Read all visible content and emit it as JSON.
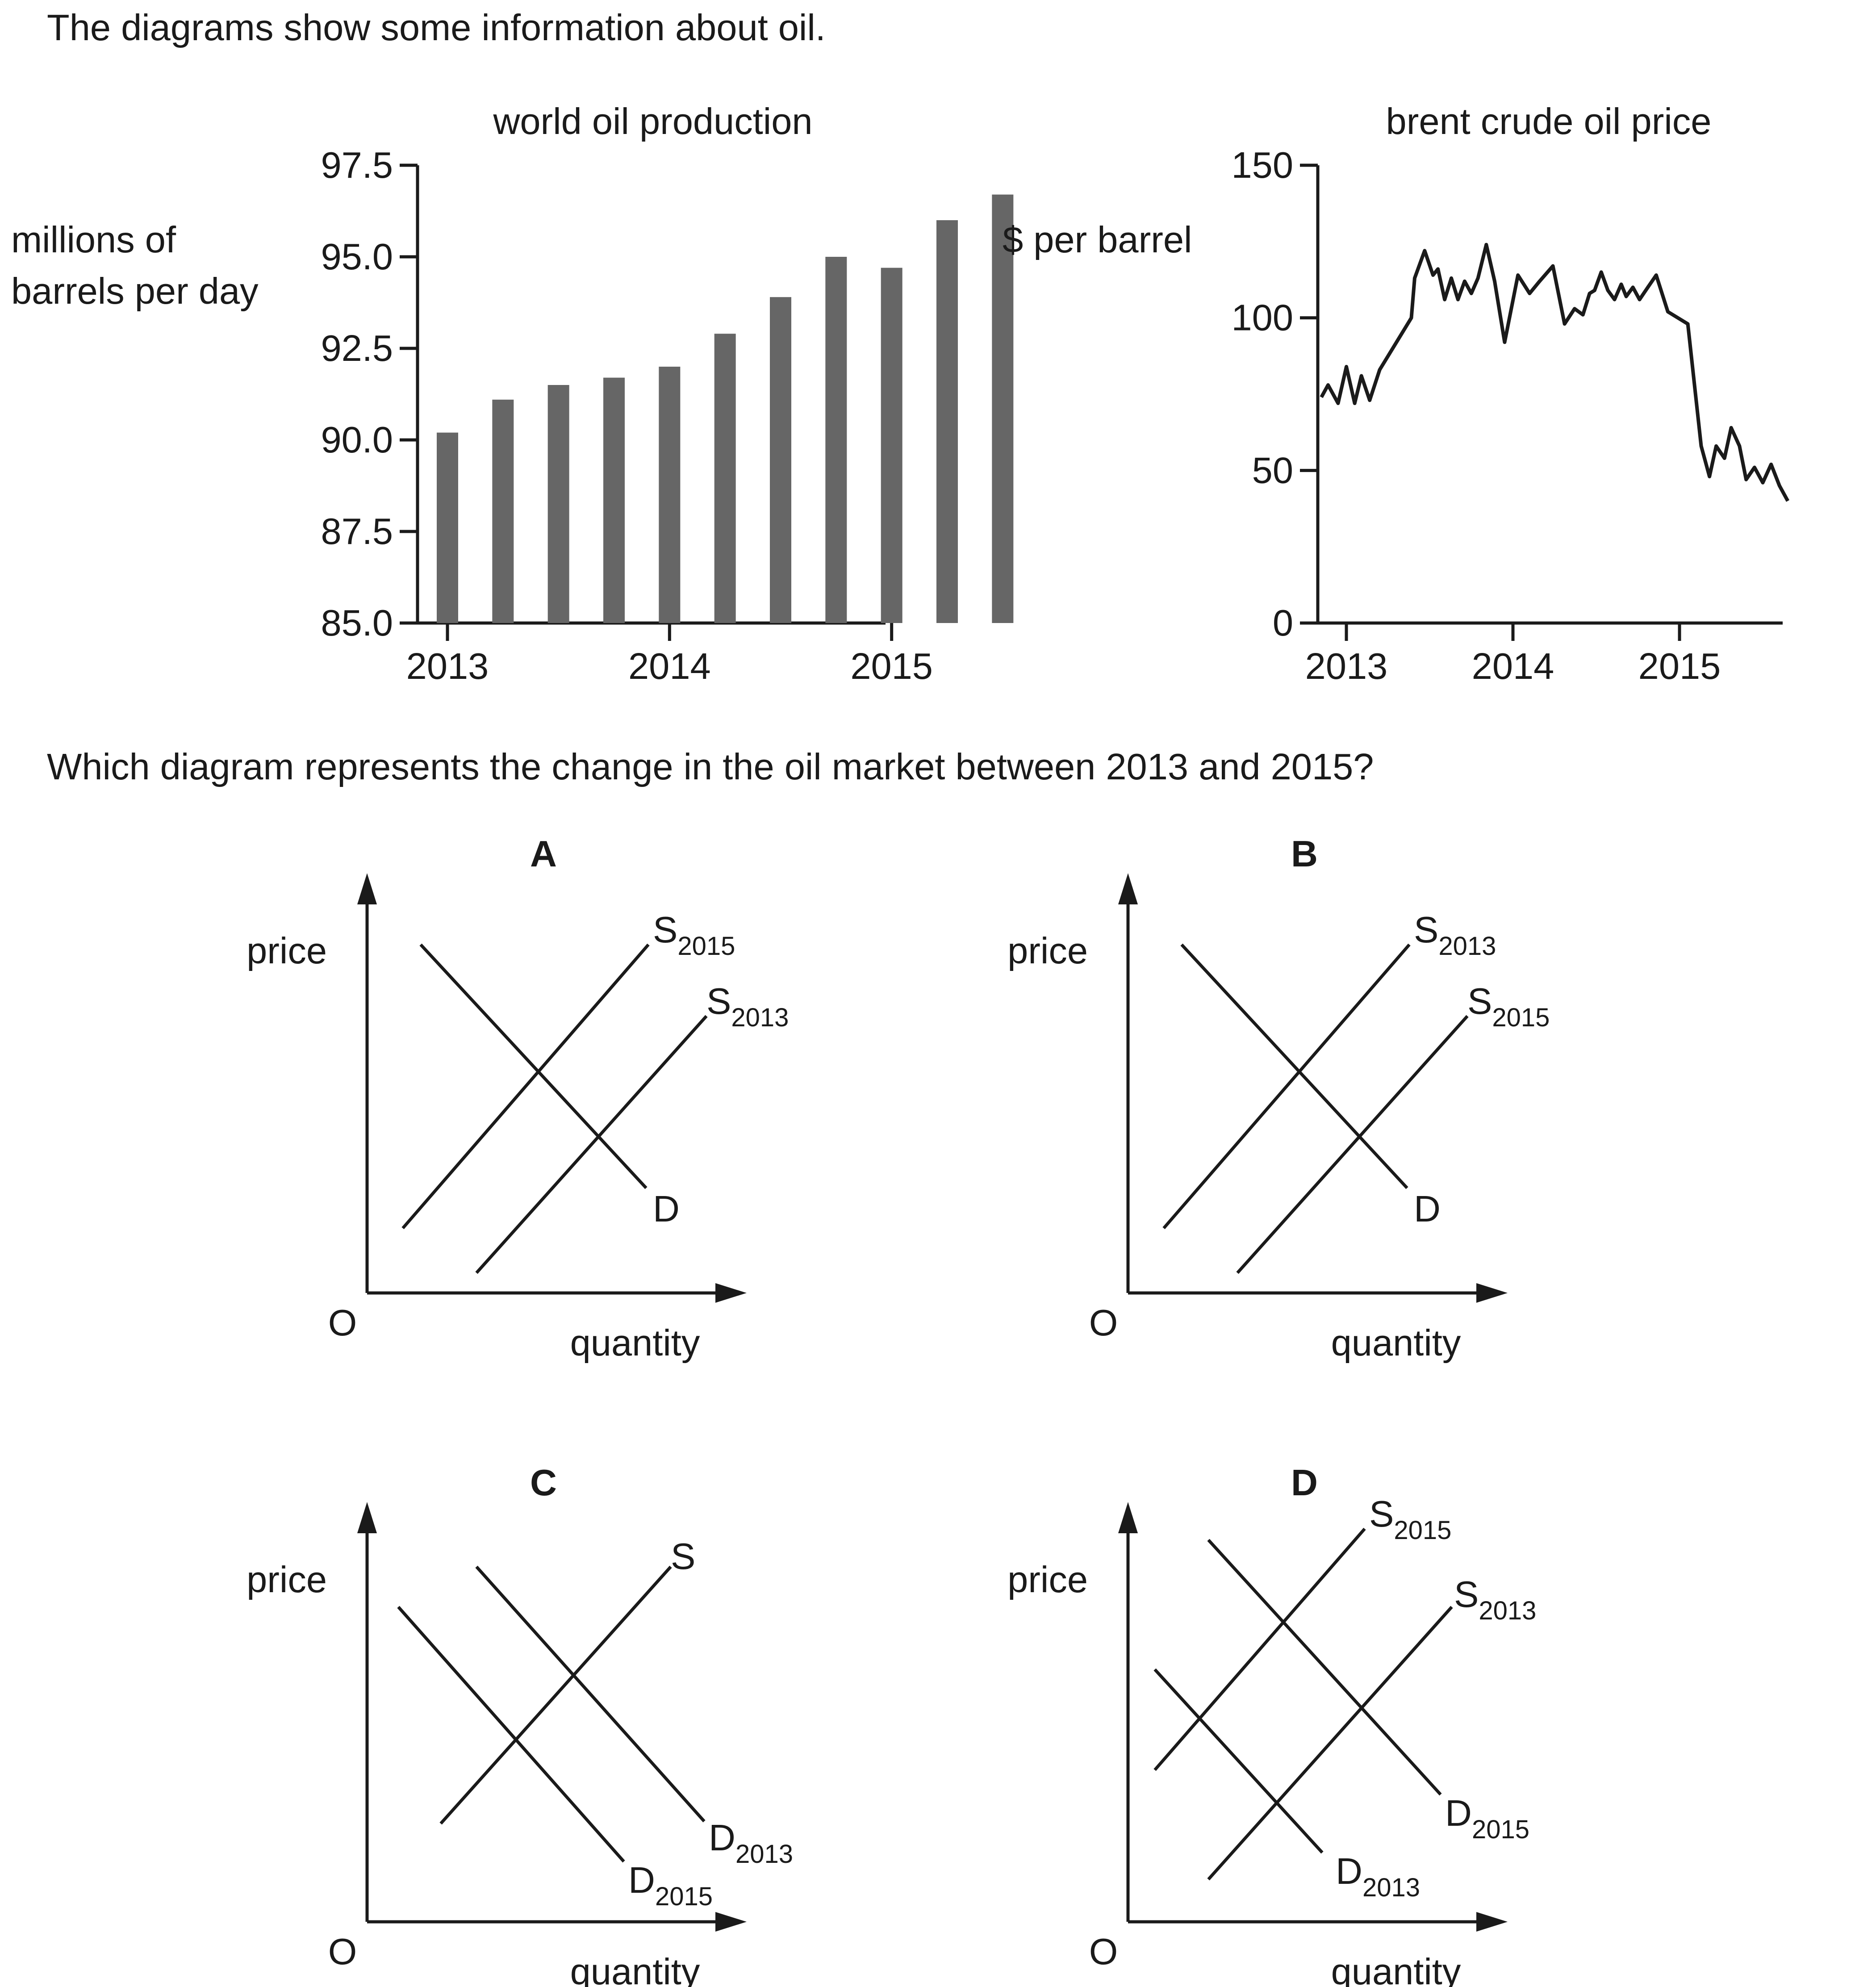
{
  "intro": "The diagrams show some information about oil.",
  "question": "Which diagram represents the change in the oil market between 2013 and 2015?",
  "chart_data": [
    {
      "type": "bar",
      "title": "world oil production",
      "ylabel": "millions of barrels per day",
      "ylim": [
        85,
        97.5
      ],
      "yticks": [
        "85.0",
        "87.5",
        "90.0",
        "92.5",
        "95.0",
        "97.5"
      ],
      "xticks": [
        "2013",
        "2014",
        "2015"
      ],
      "values": [
        90.2,
        91.1,
        91.5,
        91.7,
        92.0,
        92.9,
        93.9,
        95.0,
        94.7,
        96.0,
        96.7
      ]
    },
    {
      "type": "line",
      "title": "brent crude oil price",
      "ylabel": "$ per barrel",
      "ylim": [
        0,
        150
      ],
      "yticks": [
        "0",
        "50",
        "100",
        "150"
      ],
      "xticks": [
        "2013",
        "2014",
        "2015"
      ],
      "xlim": [
        2012.85,
        2015.65
      ],
      "x": [
        2012.85,
        2012.89,
        2012.95,
        2013.0,
        2013.05,
        2013.09,
        2013.14,
        2013.2,
        2013.39,
        2013.41,
        2013.47,
        2013.52,
        2013.55,
        2013.59,
        2013.63,
        2013.67,
        2013.71,
        2013.75,
        2013.79,
        2013.84,
        2013.89,
        2013.95,
        2014.03,
        2014.1,
        2014.16,
        2014.24,
        2014.31,
        2014.37,
        2014.42,
        2014.46,
        2014.49,
        2014.53,
        2014.57,
        2014.61,
        2014.65,
        2014.68,
        2014.72,
        2014.76,
        2014.81,
        2014.86,
        2014.93,
        2015.05,
        2015.13,
        2015.18,
        2015.22,
        2015.27,
        2015.31,
        2015.36,
        2015.4,
        2015.45,
        2015.5,
        2015.55,
        2015.6,
        2015.65
      ],
      "y": [
        74,
        78,
        72,
        84,
        72,
        81,
        73,
        83,
        100,
        113,
        122,
        114,
        116,
        106,
        113,
        106,
        112,
        108,
        113,
        124,
        112,
        92,
        114,
        108,
        112,
        117,
        98,
        103,
        101,
        108,
        109,
        115,
        109,
        106,
        111,
        107,
        110,
        106,
        110,
        114,
        102,
        98,
        58,
        48,
        58,
        54,
        64,
        58,
        47,
        51,
        46,
        52,
        45,
        40
      ]
    }
  ],
  "options": [
    {
      "letter": "A",
      "y_axis": "price",
      "x_axis": "quantity",
      "origin": "O",
      "curves": [
        {
          "name": "S",
          "sub": "2015"
        },
        {
          "name": "S",
          "sub": "2013"
        },
        {
          "name": "D",
          "sub": ""
        }
      ]
    },
    {
      "letter": "B",
      "y_axis": "price",
      "x_axis": "quantity",
      "origin": "O",
      "curves": [
        {
          "name": "S",
          "sub": "2013"
        },
        {
          "name": "S",
          "sub": "2015"
        },
        {
          "name": "D",
          "sub": ""
        }
      ]
    },
    {
      "letter": "C",
      "y_axis": "price",
      "x_axis": "quantity",
      "origin": "O",
      "curves": [
        {
          "name": "S",
          "sub": ""
        },
        {
          "name": "D",
          "sub": "2013"
        },
        {
          "name": "D",
          "sub": "2015"
        }
      ]
    },
    {
      "letter": "D",
      "y_axis": "price",
      "x_axis": "quantity",
      "origin": "O",
      "curves": [
        {
          "name": "S",
          "sub": "2015"
        },
        {
          "name": "S",
          "sub": "2013"
        },
        {
          "name": "D",
          "sub": "2015"
        },
        {
          "name": "D",
          "sub": "2013"
        }
      ]
    }
  ],
  "colors": {
    "ink": "#1a1a1a",
    "bar": "#666666"
  }
}
